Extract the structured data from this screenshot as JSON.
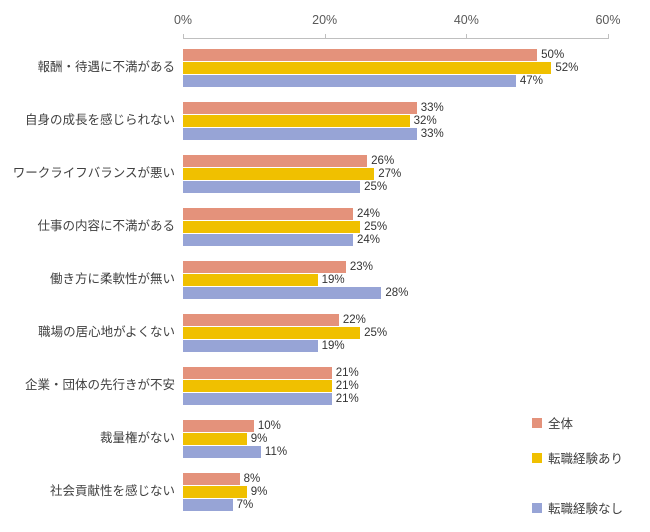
{
  "chart_data": {
    "type": "bar",
    "orientation": "horizontal",
    "title": "",
    "xlabel": "",
    "ylabel": "",
    "xlim": [
      0,
      60
    ],
    "x_ticks": [
      "0%",
      "20%",
      "40%",
      "60%"
    ],
    "value_suffix": "%",
    "grid": false,
    "legend_position": "right",
    "categories": [
      "報酬・待遇に不満がある",
      "自身の成長を感じられない",
      "ワークライフバランスが悪い",
      "仕事の内容に不満がある",
      "働き方に柔軟性が無い",
      "職場の居心地がよくない",
      "企業・団体の先行きが不安",
      "裁量権がない",
      "社会貢献性を感じない"
    ],
    "series": [
      {
        "name": "全体",
        "color": "#E4927B",
        "values": [
          50,
          33,
          26,
          24,
          23,
          22,
          21,
          10,
          8
        ]
      },
      {
        "name": "転職経験あり",
        "color": "#F0C000",
        "values": [
          52,
          32,
          27,
          25,
          19,
          25,
          21,
          9,
          9
        ]
      },
      {
        "name": "転職経験なし",
        "color": "#97A4D6",
        "values": [
          47,
          33,
          25,
          24,
          28,
          19,
          21,
          11,
          7
        ]
      }
    ]
  }
}
